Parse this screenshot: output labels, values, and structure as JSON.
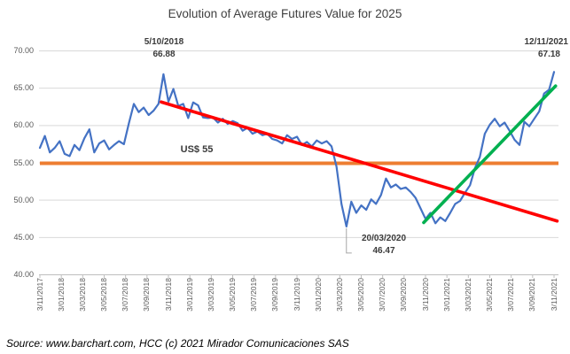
{
  "source_note": "Source: www.barchart.com, HCC (c) 2021 Mirador Comunicaciones SAS",
  "colors": {
    "series_blue": "#4472C4",
    "reference_orange": "#ED7D31",
    "downtrend_red": "#FF0000",
    "uptrend_green": "#00B050",
    "gridline": "#D9D9D9",
    "axis": "#BFBFBF",
    "axis_text": "#595959",
    "annotation_text": "#3a3a3a",
    "leader_line": "#A6A6A6"
  },
  "chart_data": {
    "type": "line",
    "title": "Evolution of Average Futures Value for 2025",
    "xlabel": "",
    "ylabel": "",
    "ylim": [
      40,
      70
    ],
    "grid": true,
    "legend": "none",
    "y_tick_labels": [
      "70.00",
      "65.00",
      "60.00",
      "55.00",
      "50.00",
      "45.00",
      "40.00"
    ],
    "y_tick_values": [
      70,
      65,
      60,
      55,
      50,
      45,
      40
    ],
    "x_tick_labels": [
      "3/11/2017",
      "3/01/2018",
      "3/03/2018",
      "3/05/2018",
      "3/07/2018",
      "3/09/2018",
      "3/11/2018",
      "3/01/2019",
      "3/03/2019",
      "3/05/2019",
      "3/07/2019",
      "3/09/2019",
      "3/11/2019",
      "3/01/2020",
      "3/03/2020",
      "3/05/2020",
      "3/07/2020",
      "3/09/2020",
      "3/11/2020",
      "3/01/2021",
      "3/03/2021",
      "3/05/2021",
      "3/07/2021",
      "3/09/2021",
      "3/11/2021"
    ],
    "series": [
      {
        "name": "average-futures-value-2025",
        "color": "#4472C4",
        "values": [
          57.0,
          58.6,
          56.4,
          57.0,
          57.9,
          56.2,
          55.9,
          57.4,
          56.7,
          58.3,
          59.5,
          56.4,
          57.6,
          58.0,
          56.8,
          57.4,
          57.9,
          57.5,
          60.3,
          62.9,
          61.8,
          62.4,
          61.4,
          62.0,
          62.9,
          66.88,
          63.2,
          64.9,
          62.6,
          62.9,
          61.0,
          63.1,
          62.7,
          61.1,
          61.0,
          61.1,
          60.4,
          60.9,
          60.2,
          60.6,
          60.3,
          59.3,
          59.7,
          58.9,
          59.2,
          58.7,
          58.9,
          58.2,
          58.0,
          57.6,
          58.7,
          58.2,
          58.5,
          57.4,
          57.8,
          57.2,
          58.0,
          57.6,
          57.9,
          57.2,
          54.5,
          49.5,
          46.47,
          49.8,
          48.3,
          49.3,
          48.7,
          50.1,
          49.5,
          50.7,
          52.9,
          51.7,
          52.1,
          51.5,
          51.7,
          51.1,
          50.3,
          48.9,
          47.5,
          48.3,
          46.9,
          47.7,
          47.2,
          48.3,
          49.5,
          49.9,
          51.0,
          52.0,
          54.3,
          55.8,
          58.9,
          60.1,
          60.9,
          59.9,
          60.4,
          59.3,
          58.1,
          57.4,
          60.5,
          59.9,
          60.9,
          61.9,
          64.3,
          64.8,
          67.18
        ]
      }
    ],
    "reference_line": {
      "label": "US$ 55",
      "value": 55,
      "color": "#ED7D31"
    },
    "trendlines": [
      {
        "name": "downtrend-2018-2021",
        "color": "#FF0000",
        "from_frac": 0.236,
        "from_value": 63.15,
        "to_frac": 1.006,
        "to_value": 47.2
      },
      {
        "name": "uptrend-2020-2021",
        "color": "#00B050",
        "from_frac": 0.7465,
        "from_value": 47.0,
        "to_frac": 1.003,
        "to_value": 65.3
      }
    ],
    "annotations": [
      {
        "date": "5/10/2018",
        "value": "66.88",
        "position": "above-peak"
      },
      {
        "date": "12/11/2021",
        "value": "67.18",
        "position": "above-end"
      },
      {
        "date": "20/03/2020",
        "value": "46.47",
        "position": "below-low"
      }
    ]
  }
}
